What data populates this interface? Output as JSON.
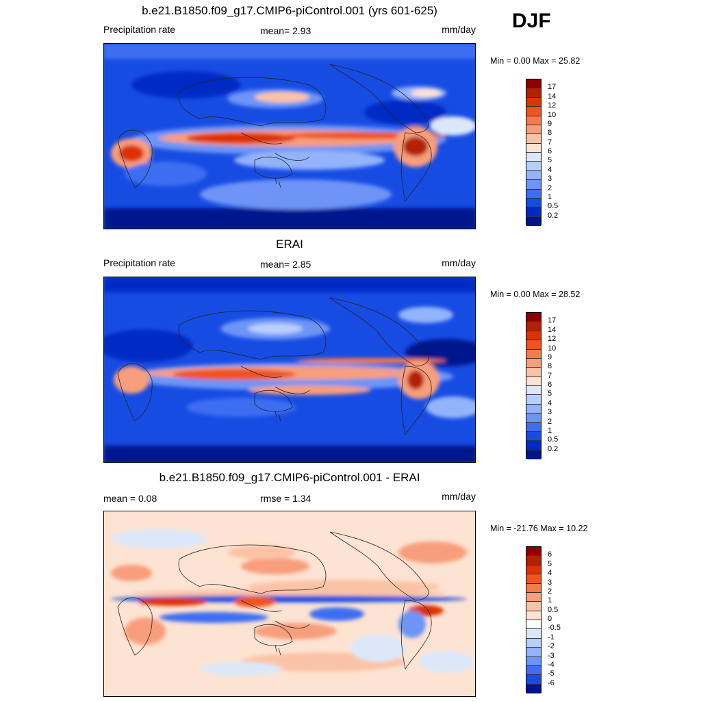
{
  "season": "DJF",
  "units": "mm/day",
  "panels": [
    {
      "title": "b.e21.B1850.f09_g17.CMIP6-piControl.001 (yrs 601-625)",
      "left_label": "Precipitation rate",
      "center_label": "mean=   2.93",
      "right_label": "mm/day",
      "minmax": "Min =    0.00 Max =  25.82",
      "type": "field",
      "colorbar": {
        "levels": [
          "17",
          "14",
          "12",
          "10",
          "9",
          "8",
          "7",
          "6",
          "5",
          "4",
          "3",
          "2",
          "1",
          "0.5",
          "0.2"
        ],
        "colors": [
          "#8b0000",
          "#b22200",
          "#dd3300",
          "#f0531d",
          "#f57a4e",
          "#f89e7b",
          "#fbc3a6",
          "#fde3d2",
          "#dce8fa",
          "#b9cffb",
          "#93b4fb",
          "#6d94f6",
          "#3e6ef1",
          "#174ce3",
          "#0029c4",
          "#00128c"
        ]
      }
    },
    {
      "title": "ERAI",
      "left_label": "Precipitation rate",
      "center_label": "mean=   2.85",
      "right_label": "mm/day",
      "minmax": "Min =    0.00 Max =  28.52",
      "type": "field",
      "colorbar": {
        "levels": [
          "17",
          "14",
          "12",
          "10",
          "9",
          "8",
          "7",
          "6",
          "5",
          "4",
          "3",
          "2",
          "1",
          "0.5",
          "0.2"
        ],
        "colors": [
          "#8b0000",
          "#b22200",
          "#dd3300",
          "#f0531d",
          "#f57a4e",
          "#f89e7b",
          "#fbc3a6",
          "#fde3d2",
          "#dce8fa",
          "#b9cffb",
          "#93b4fb",
          "#6d94f6",
          "#3e6ef1",
          "#174ce3",
          "#0029c4",
          "#00128c"
        ]
      }
    },
    {
      "title": "b.e21.B1850.f09_g17.CMIP6-piControl.001 - ERAI",
      "left_label": "mean =    0.08",
      "center_label": "rmse =    1.34",
      "right_label": "mm/day",
      "minmax": "Min = -21.76 Max =  10.22",
      "type": "diff",
      "colorbar": {
        "levels": [
          "6",
          "5",
          "4",
          "3",
          "2",
          "1",
          "0.5",
          "0",
          "-0.5",
          "-1",
          "-2",
          "-3",
          "-4",
          "-5",
          "-6"
        ],
        "colors": [
          "#8b0000",
          "#b22200",
          "#dd3300",
          "#f0531d",
          "#f57a4e",
          "#f89e7b",
          "#fbc3a6",
          "#fde3d2",
          "#ffffff",
          "#dce8fa",
          "#b9cffb",
          "#93b4fb",
          "#6d94f6",
          "#3e6ef1",
          "#174ce3",
          "#00128c"
        ]
      }
    }
  ]
}
